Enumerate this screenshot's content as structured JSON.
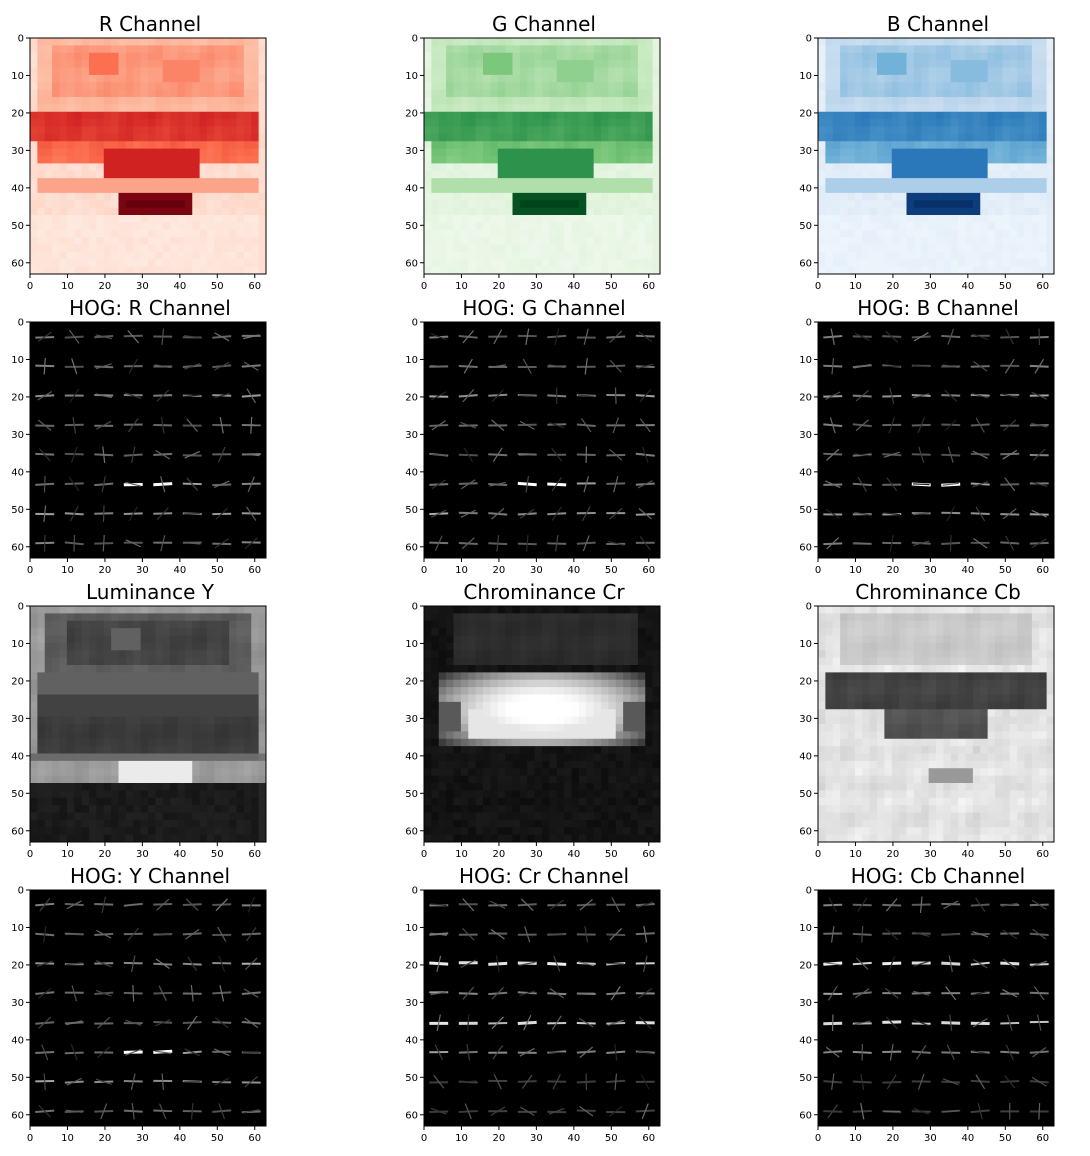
{
  "chart_data": [
    {
      "type": "heatmap",
      "title": "R Channel",
      "colormap": "reds",
      "pattern": "rgb",
      "xlim": [
        0,
        63
      ],
      "ylim": [
        63,
        0
      ],
      "xticks": [
        0,
        10,
        20,
        30,
        40,
        50,
        60
      ],
      "yticks": [
        0,
        10,
        20,
        30,
        40,
        50,
        60
      ]
    },
    {
      "type": "heatmap",
      "title": "G Channel",
      "colormap": "greens",
      "pattern": "rgb",
      "xlim": [
        0,
        63
      ],
      "ylim": [
        63,
        0
      ],
      "xticks": [
        0,
        10,
        20,
        30,
        40,
        50,
        60
      ],
      "yticks": [
        0,
        10,
        20,
        30,
        40,
        50,
        60
      ]
    },
    {
      "type": "heatmap",
      "title": "B Channel",
      "colormap": "blues",
      "pattern": "rgb",
      "xlim": [
        0,
        63
      ],
      "ylim": [
        63,
        0
      ],
      "xticks": [
        0,
        10,
        20,
        30,
        40,
        50,
        60
      ],
      "yticks": [
        0,
        10,
        20,
        30,
        40,
        50,
        60
      ]
    },
    {
      "type": "heatmap",
      "title": "HOG: R Channel",
      "colormap": "gray",
      "pattern": "hog",
      "hog_variant": "rgb",
      "xlim": [
        0,
        63
      ],
      "ylim": [
        63,
        0
      ],
      "xticks": [
        0,
        10,
        20,
        30,
        40,
        50,
        60
      ],
      "yticks": [
        0,
        10,
        20,
        30,
        40,
        50,
        60
      ]
    },
    {
      "type": "heatmap",
      "title": "HOG: G Channel",
      "colormap": "gray",
      "pattern": "hog",
      "hog_variant": "rgb",
      "xlim": [
        0,
        63
      ],
      "ylim": [
        63,
        0
      ],
      "xticks": [
        0,
        10,
        20,
        30,
        40,
        50,
        60
      ],
      "yticks": [
        0,
        10,
        20,
        30,
        40,
        50,
        60
      ]
    },
    {
      "type": "heatmap",
      "title": "HOG: B Channel",
      "colormap": "gray",
      "pattern": "hog",
      "hog_variant": "rgb",
      "xlim": [
        0,
        63
      ],
      "ylim": [
        63,
        0
      ],
      "xticks": [
        0,
        10,
        20,
        30,
        40,
        50,
        60
      ],
      "yticks": [
        0,
        10,
        20,
        30,
        40,
        50,
        60
      ]
    },
    {
      "type": "heatmap",
      "title": "Luminance Y",
      "colormap": "gray",
      "pattern": "luma",
      "xlim": [
        0,
        63
      ],
      "ylim": [
        63,
        0
      ],
      "xticks": [
        0,
        10,
        20,
        30,
        40,
        50,
        60
      ],
      "yticks": [
        0,
        10,
        20,
        30,
        40,
        50,
        60
      ]
    },
    {
      "type": "heatmap",
      "title": "Chrominance Cr",
      "colormap": "gray",
      "pattern": "cr",
      "xlim": [
        0,
        63
      ],
      "ylim": [
        63,
        0
      ],
      "xticks": [
        0,
        10,
        20,
        30,
        40,
        50,
        60
      ],
      "yticks": [
        0,
        10,
        20,
        30,
        40,
        50,
        60
      ]
    },
    {
      "type": "heatmap",
      "title": "Chrominance Cb",
      "colormap": "gray",
      "pattern": "cb",
      "xlim": [
        0,
        63
      ],
      "ylim": [
        63,
        0
      ],
      "xticks": [
        0,
        10,
        20,
        30,
        40,
        50,
        60
      ],
      "yticks": [
        0,
        10,
        20,
        30,
        40,
        50,
        60
      ]
    },
    {
      "type": "heatmap",
      "title": "HOG: Y Channel",
      "colormap": "gray",
      "pattern": "hog",
      "hog_variant": "rgb",
      "xlim": [
        0,
        63
      ],
      "ylim": [
        63,
        0
      ],
      "xticks": [
        0,
        10,
        20,
        30,
        40,
        50,
        60
      ],
      "yticks": [
        0,
        10,
        20,
        30,
        40,
        50,
        60
      ]
    },
    {
      "type": "heatmap",
      "title": "HOG: Cr Channel",
      "colormap": "gray",
      "pattern": "hog",
      "hog_variant": "chroma",
      "xlim": [
        0,
        63
      ],
      "ylim": [
        63,
        0
      ],
      "xticks": [
        0,
        10,
        20,
        30,
        40,
        50,
        60
      ],
      "yticks": [
        0,
        10,
        20,
        30,
        40,
        50,
        60
      ]
    },
    {
      "type": "heatmap",
      "title": "HOG: Cb Channel",
      "colormap": "gray",
      "pattern": "hog",
      "hog_variant": "chroma",
      "xlim": [
        0,
        63
      ],
      "ylim": [
        63,
        0
      ],
      "xticks": [
        0,
        10,
        20,
        30,
        40,
        50,
        60
      ],
      "yticks": [
        0,
        10,
        20,
        30,
        40,
        50,
        60
      ]
    }
  ]
}
